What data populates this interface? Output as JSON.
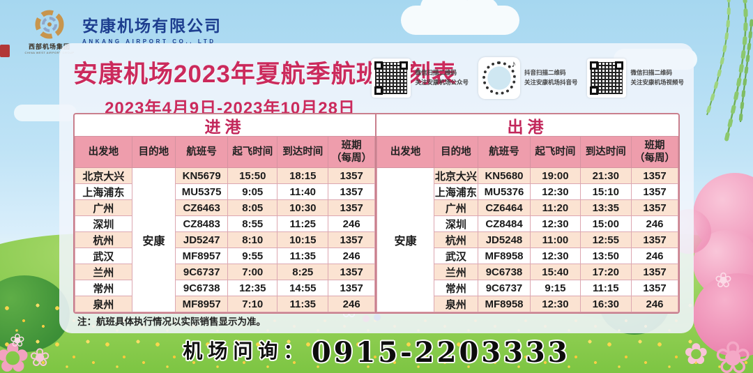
{
  "header": {
    "group_name_cn": "西部机场集团",
    "group_name_en": "CHINA WEST AIRPORT GROUP",
    "company_cn": "安康机场有限公司",
    "company_en": "ANKANG AIRPORT CO., LTD"
  },
  "panel": {
    "title": "安康机场2023年夏航季航班时刻表",
    "date_range": "2023年4月9日-2023年10月28日",
    "qr_codes": [
      {
        "line1": "微信扫描二维码",
        "line2": "关注安康机场公众号"
      },
      {
        "line1": "抖音扫描二维码",
        "line2": "关注安康机场抖音号"
      },
      {
        "line1": "微信扫描二维码",
        "line2": "关注安康机场视频号"
      }
    ],
    "note": "注：航班具体执行情况以实际销售显示为准。"
  },
  "tables": [
    {
      "title": "进港",
      "columns": [
        "出发地",
        "目的地",
        "航班号",
        "起飞时间",
        "到达时间",
        "班期\n（每周）"
      ],
      "merged": {
        "column": 1,
        "value": "安康"
      },
      "rows": [
        [
          "北京大兴",
          "KN5679",
          "15:50",
          "18:15",
          "1357"
        ],
        [
          "上海浦东",
          "MU5375",
          "9:05",
          "11:40",
          "1357"
        ],
        [
          "广州",
          "CZ6463",
          "8:05",
          "10:30",
          "1357"
        ],
        [
          "深圳",
          "CZ8483",
          "8:55",
          "11:25",
          "246"
        ],
        [
          "杭州",
          "JD5247",
          "8:10",
          "10:15",
          "1357"
        ],
        [
          "武汉",
          "MF8957",
          "9:55",
          "11:35",
          "246"
        ],
        [
          "兰州",
          "9C6737",
          "7:00",
          "8:25",
          "1357"
        ],
        [
          "常州",
          "9C6738",
          "12:35",
          "14:55",
          "1357"
        ],
        [
          "泉州",
          "MF8957",
          "7:10",
          "11:35",
          "246"
        ]
      ]
    },
    {
      "title": "出港",
      "columns": [
        "出发地",
        "目的地",
        "航班号",
        "起飞时间",
        "到达时间",
        "班期\n（每周）"
      ],
      "merged": {
        "column": 0,
        "value": "安康"
      },
      "rows": [
        [
          "北京大兴",
          "KN5680",
          "19:00",
          "21:30",
          "1357"
        ],
        [
          "上海浦东",
          "MU5376",
          "12:30",
          "15:10",
          "1357"
        ],
        [
          "广州",
          "CZ6464",
          "11:20",
          "13:35",
          "1357"
        ],
        [
          "深圳",
          "CZ8484",
          "12:30",
          "15:00",
          "246"
        ],
        [
          "杭州",
          "JD5248",
          "11:00",
          "12:55",
          "1357"
        ],
        [
          "武汉",
          "MF8958",
          "12:30",
          "13:50",
          "246"
        ],
        [
          "兰州",
          "9C6738",
          "15:40",
          "17:20",
          "1357"
        ],
        [
          "常州",
          "9C6737",
          "9:15",
          "11:15",
          "1357"
        ],
        [
          "泉州",
          "MF8958",
          "12:30",
          "16:30",
          "246"
        ]
      ]
    }
  ],
  "footer": {
    "inquiry_label": "机场问询：",
    "phone": "0915-2203333"
  },
  "icons": {
    "douyin_note": "♪"
  },
  "colors": {
    "accent_magenta": "#cb2a5c",
    "header_pink": "#ee9dac",
    "row_peach": "#fbe3d2",
    "table_border": "#c97f8d",
    "company_blue": "#1d3e8f"
  }
}
